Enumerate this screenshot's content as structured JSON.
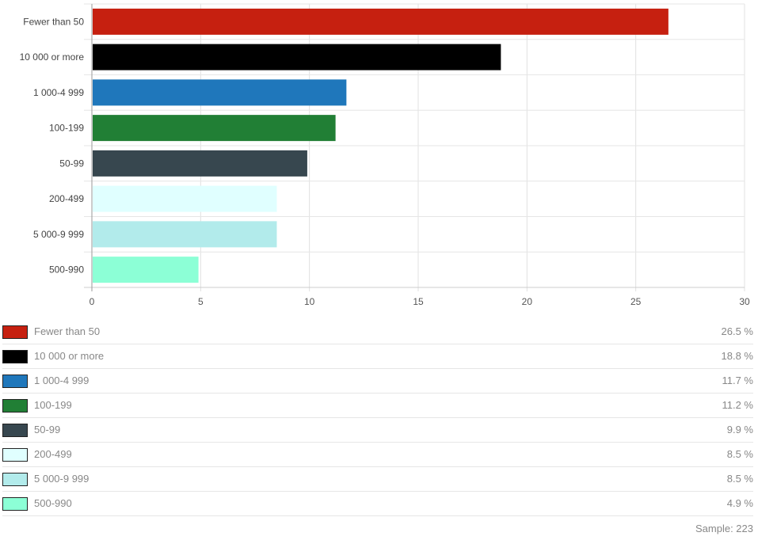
{
  "chart_data": {
    "type": "bar",
    "orientation": "horizontal",
    "categories": [
      "Fewer than 50",
      "10 000 or more",
      "1 000-4 999",
      "100-199",
      "50-99",
      "200-499",
      "5 000-9 999",
      "500-990"
    ],
    "values": [
      26.5,
      18.8,
      11.7,
      11.2,
      9.9,
      8.5,
      8.5,
      4.9
    ],
    "colors": [
      "#c62010",
      "#000000",
      "#1f77bb",
      "#217f35",
      "#37474f",
      "#e0ffff",
      "#b2ebeb",
      "#8cffd6"
    ],
    "value_labels": [
      "26.5 %",
      "18.8 %",
      "11.7 %",
      "11.2 %",
      "9.9 %",
      "8.5 %",
      "8.5 %",
      "4.9 %"
    ],
    "xlim": [
      0,
      30
    ],
    "xticks": [
      "0",
      "5",
      "10",
      "15",
      "20",
      "25",
      "30"
    ],
    "grid": true,
    "legend": "bottom"
  },
  "sample_text": "Sample: 223"
}
